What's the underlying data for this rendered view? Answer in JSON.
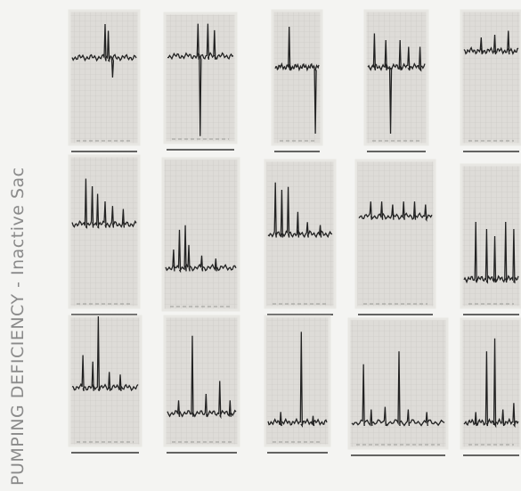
{
  "title": "PUMPING DEFICIENCY - Inactive Sac"
}
